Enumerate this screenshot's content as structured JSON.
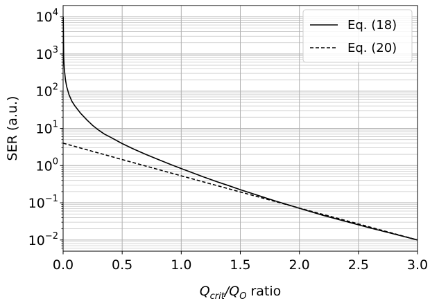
{
  "chart_data": {
    "type": "line",
    "xlabel": {
      "main": "Q",
      "sub1": "crit",
      "slash": "/Q",
      "sub2": "O",
      "tail": " ratio"
    },
    "ylabel": "SER (a.u.)",
    "xlim": [
      0,
      3.0
    ],
    "ylim": [
      0.005,
      20000
    ],
    "yscale": "log",
    "xticks": [
      0,
      0.5,
      1.0,
      1.5,
      2.0,
      2.5,
      3.0
    ],
    "xtick_labels": [
      "0.0",
      "0.5",
      "1.0",
      "1.5",
      "2.0",
      "2.5",
      "3.0"
    ],
    "yticks": [
      {
        "value": 10000,
        "base": "10",
        "exp": "4"
      },
      {
        "value": 1000,
        "base": "10",
        "exp": "3"
      },
      {
        "value": 100,
        "base": "10",
        "exp": "2"
      },
      {
        "value": 10,
        "base": "10",
        "exp": "1"
      },
      {
        "value": 1,
        "base": "10",
        "exp": "0"
      },
      {
        "value": 0.1,
        "base": "10",
        "exp": "−1"
      },
      {
        "value": 0.01,
        "base": "10",
        "exp": "−2"
      }
    ],
    "grid": true,
    "minor_grid": true,
    "legend_position": "top-right",
    "series": [
      {
        "name": "Eq. (18)",
        "color": "#000000",
        "style": "solid",
        "x": [
          0.001,
          0.005,
          0.01,
          0.02,
          0.03,
          0.05,
          0.075,
          0.1,
          0.15,
          0.2,
          0.25,
          0.3,
          0.35,
          0.4,
          0.5,
          0.6,
          0.7,
          0.8,
          0.9,
          1.0,
          1.1,
          1.2,
          1.3,
          1.4,
          1.5,
          1.6,
          1.7,
          1.8,
          1.9,
          2.0,
          2.2,
          2.4,
          2.6,
          2.8,
          3.0
        ],
        "y": [
          10000,
          800,
          400,
          200,
          133,
          80,
          53,
          40,
          25,
          17,
          12,
          9,
          7,
          5.8,
          3.9,
          2.75,
          2.0,
          1.48,
          1.1,
          0.83,
          0.63,
          0.48,
          0.37,
          0.29,
          0.225,
          0.178,
          0.14,
          0.111,
          0.089,
          0.071,
          0.046,
          0.031,
          0.021,
          0.0145,
          0.01
        ]
      },
      {
        "name": "Eq. (20)",
        "color": "#000000",
        "style": "dashed",
        "x": [
          0.0,
          0.5,
          1.0,
          1.5,
          2.0,
          2.5,
          3.0
        ],
        "y": [
          4.0,
          1.45,
          0.53,
          0.195,
          0.072,
          0.027,
          0.01
        ]
      }
    ]
  }
}
